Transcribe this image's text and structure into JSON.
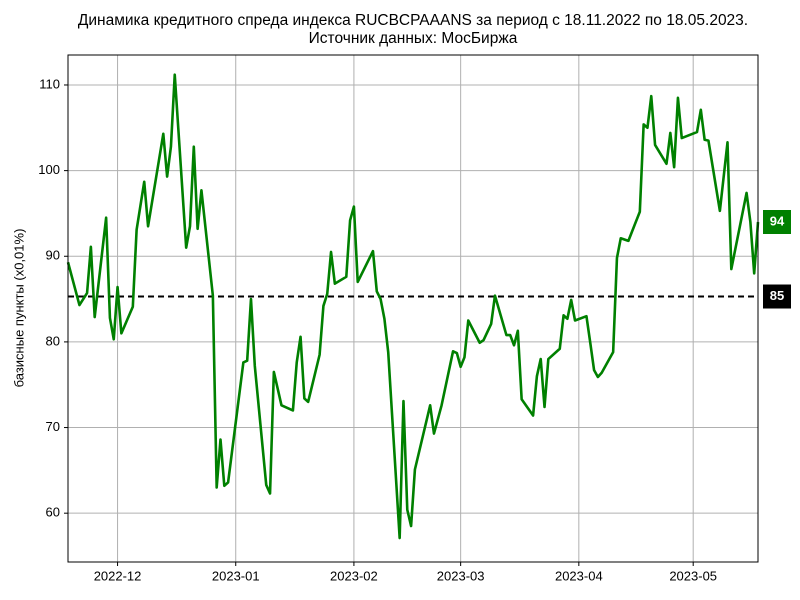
{
  "chart_data": {
    "type": "line",
    "title": "Динамика кредитного спреда индекса RUCBCPAAANS за период с 18.11.2022 по 18.05.2023.",
    "subtitle": "Источник данных: МосБиржа",
    "y_label": "базисные пункты (x0,01%)",
    "grid": true,
    "xlim": [
      "2022-11-18",
      "2023-05-18"
    ],
    "xticks": [
      {
        "value": "2022-12-01",
        "label": "2022-12"
      },
      {
        "value": "2023-01-01",
        "label": "2023-01"
      },
      {
        "value": "2023-02-01",
        "label": "2023-02"
      },
      {
        "value": "2023-03-01",
        "label": "2023-03"
      },
      {
        "value": "2023-04-01",
        "label": "2023-04"
      },
      {
        "value": "2023-05-01",
        "label": "2023-05"
      }
    ],
    "ylim": [
      54.3,
      113.5
    ],
    "yticks": [
      60,
      70,
      80,
      90,
      100,
      110
    ],
    "reference_line": {
      "value": 85.3,
      "label": "85",
      "color": "#000000"
    },
    "last_label": {
      "value": 94,
      "color": "#008000"
    },
    "series": [
      {
        "color": "#008000",
        "x": [
          "2022-11-18",
          "2022-11-21",
          "2022-11-23",
          "2022-11-24",
          "2022-11-25",
          "2022-11-28",
          "2022-11-29",
          "2022-11-30",
          "2022-12-01",
          "2022-12-02",
          "2022-12-05",
          "2022-12-06",
          "2022-12-08",
          "2022-12-09",
          "2022-12-13",
          "2022-12-14",
          "2022-12-15",
          "2022-12-16",
          "2022-12-19",
          "2022-12-20",
          "2022-12-21",
          "2022-12-22",
          "2022-12-23",
          "2022-12-26",
          "2022-12-27",
          "2022-12-28",
          "2022-12-29",
          "2022-12-30",
          "2023-01-03",
          "2023-01-04",
          "2023-01-05",
          "2023-01-06",
          "2023-01-09",
          "2023-01-10",
          "2023-01-11",
          "2023-01-13",
          "2023-01-16",
          "2023-01-17",
          "2023-01-18",
          "2023-01-19",
          "2023-01-20",
          "2023-01-23",
          "2023-01-24",
          "2023-01-25",
          "2023-01-26",
          "2023-01-27",
          "2023-01-30",
          "2023-01-31",
          "2023-02-01",
          "2023-02-02",
          "2023-02-06",
          "2023-02-07",
          "2023-02-08",
          "2023-02-09",
          "2023-02-10",
          "2023-02-13",
          "2023-02-14",
          "2023-02-15",
          "2023-02-16",
          "2023-02-17",
          "2023-02-21",
          "2023-02-22",
          "2023-02-24",
          "2023-02-27",
          "2023-02-28",
          "2023-03-01",
          "2023-03-02",
          "2023-03-03",
          "2023-03-06",
          "2023-03-07",
          "2023-03-09",
          "2023-03-10",
          "2023-03-13",
          "2023-03-14",
          "2023-03-15",
          "2023-03-16",
          "2023-03-17",
          "2023-03-20",
          "2023-03-21",
          "2023-03-22",
          "2023-03-23",
          "2023-03-24",
          "2023-03-27",
          "2023-03-28",
          "2023-03-29",
          "2023-03-30",
          "2023-03-31",
          "2023-04-03",
          "2023-04-04",
          "2023-04-05",
          "2023-04-06",
          "2023-04-07",
          "2023-04-10",
          "2023-04-11",
          "2023-04-12",
          "2023-04-14",
          "2023-04-17",
          "2023-04-18",
          "2023-04-19",
          "2023-04-20",
          "2023-04-21",
          "2023-04-24",
          "2023-04-25",
          "2023-04-26",
          "2023-04-27",
          "2023-04-28",
          "2023-05-02",
          "2023-05-03",
          "2023-05-04",
          "2023-05-05",
          "2023-05-08",
          "2023-05-10",
          "2023-05-11",
          "2023-05-15",
          "2023-05-16",
          "2023-05-17",
          "2023-05-18"
        ],
        "values": [
          89.3,
          84.3,
          85.7,
          91.1,
          82.9,
          94.5,
          82.8,
          80.3,
          86.4,
          81.0,
          84.1,
          93.1,
          98.7,
          93.5,
          104.3,
          99.3,
          102.8,
          111.2,
          91.0,
          93.5,
          102.8,
          93.2,
          97.7,
          85.4,
          63.0,
          68.6,
          63.2,
          63.6,
          77.6,
          77.8,
          85.0,
          77.2,
          63.3,
          62.3,
          76.5,
          72.6,
          72.0,
          77.6,
          80.6,
          73.4,
          73.0,
          78.5,
          84.2,
          85.6,
          90.5,
          86.8,
          87.6,
          94.2,
          95.8,
          87.0,
          90.6,
          85.9,
          85.0,
          82.7,
          78.8,
          57.1,
          73.1,
          60.4,
          58.5,
          65.1,
          72.6,
          69.3,
          72.6,
          78.9,
          78.7,
          77.1,
          78.2,
          82.5,
          79.9,
          80.2,
          82.1,
          85.4,
          80.8,
          80.8,
          79.6,
          81.3,
          73.3,
          71.4,
          76.0,
          78.0,
          72.4,
          78.0,
          79.2,
          83.1,
          82.7,
          84.9,
          82.5,
          83.0,
          79.9,
          76.7,
          75.9,
          76.4,
          78.8,
          89.8,
          92.1,
          91.8,
          95.2,
          105.4,
          105.0,
          108.7,
          103.0,
          100.8,
          104.4,
          100.4,
          108.5,
          103.8,
          104.5,
          107.1,
          103.6,
          103.5,
          95.3,
          103.3,
          88.5,
          97.4,
          94.0,
          88.0,
          94
        ]
      }
    ]
  }
}
